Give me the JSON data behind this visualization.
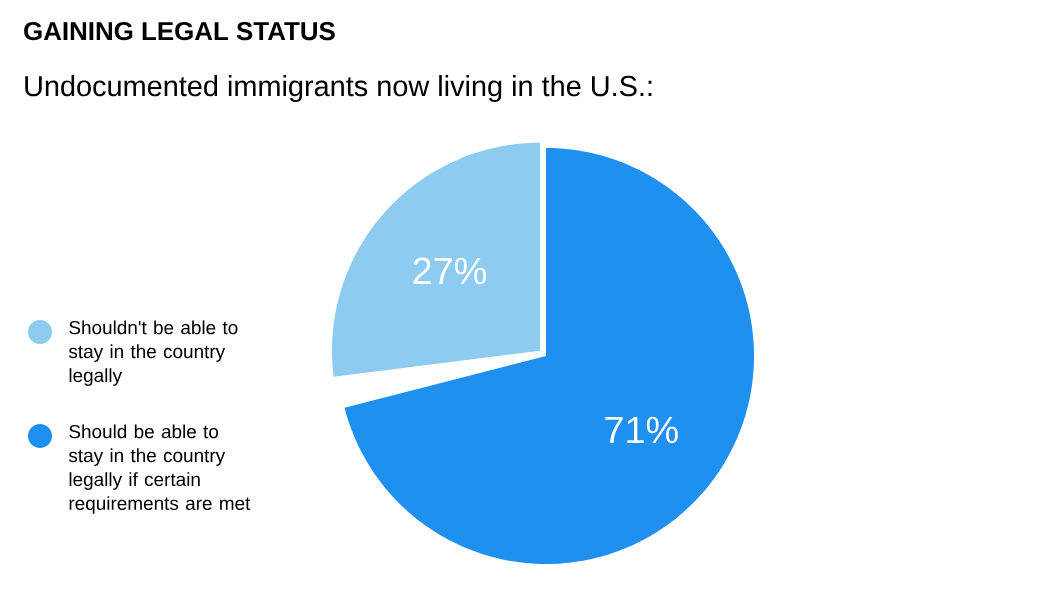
{
  "chart_data": {
    "type": "pie",
    "title": "GAINING LEGAL STATUS",
    "subtitle": "Undocumented immigrants now living in the U.S.:",
    "categories": [
      "Shouldn't be able to stay in the country legally",
      "Should be able to stay in the country legally if certain requirements are met"
    ],
    "values": [
      27,
      71
    ],
    "colors": [
      "#8ecbf0",
      "#1f8ff0"
    ],
    "value_labels": [
      "27%",
      "71%"
    ],
    "legend": "left"
  }
}
